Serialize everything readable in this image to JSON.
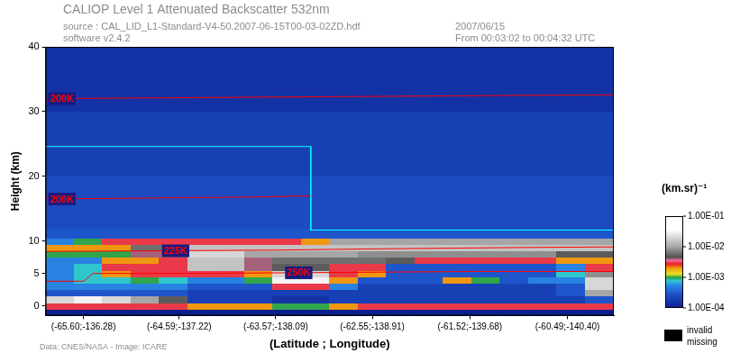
{
  "chart_data": {
    "type": "heatmap",
    "title": "CALIOP Level 1 Attenuated Backscatter 532nm",
    "subtitle": [
      "source : CAL_LID_L1-Standard-V4-50.2007-06-15T00-03-02ZD.hdf",
      "software v2.4.2"
    ],
    "annotations": [
      "2007/06/15",
      "From 00:03:02 to 00:04:32 UTC",
      "Data: CNES/NASA - Image: ICARE"
    ],
    "x_label": "(Latitude ; Longitude)",
    "y_label": "Height (km)",
    "grid": false,
    "xlim": [
      -66.0,
      -60.0
    ],
    "xticks": [
      {
        "value": -65.6,
        "label": "(-65.60;-136.28)"
      },
      {
        "value": -64.59,
        "label": "(-64.59;-137.22)"
      },
      {
        "value": -63.57,
        "label": "(-63.57;-138.09)"
      },
      {
        "value": -62.55,
        "label": "(-62.55;-138.91)"
      },
      {
        "value": -61.52,
        "label": "(-61.52;-139.68)"
      },
      {
        "value": -60.49,
        "label": "(-60.49;-140.40)"
      }
    ],
    "ylim": [
      -1.5,
      40
    ],
    "yticks": [
      0,
      5,
      10,
      20,
      30,
      40
    ],
    "heatmap": {
      "x_edges": [
        -66.0,
        -65.7,
        -65.4,
        -65.1,
        -64.8,
        -64.5,
        -64.2,
        -63.9,
        -63.6,
        -63.3,
        -63.0,
        -62.7,
        -62.4,
        -62.1,
        -61.8,
        -61.5,
        -61.2,
        -60.9,
        -60.6,
        -60.3,
        -60.0
      ],
      "y_edges": [
        -1.5,
        -0.5,
        0.5,
        1.5,
        2.5,
        3.5,
        4.5,
        5.5,
        6.5,
        7.5,
        8.5,
        9.5,
        10.5,
        12,
        15,
        20,
        25,
        30,
        40
      ],
      "values": [
        [
          0.0001,
          0.0001,
          0.0001,
          0.0001,
          0.0001,
          0.0001,
          0.0001,
          0.0001,
          0.0001,
          0.0001,
          0.0001,
          0.0001,
          0.0001,
          0.0001,
          0.0001,
          0.0001,
          0.0001,
          0.0001,
          0.0001,
          0.0001
        ],
        [
          0.003,
          0.003,
          0.003,
          0.003,
          0.003,
          0.002,
          0.002,
          0.002,
          0.001,
          0.001,
          0.002,
          0.003,
          0.003,
          0.003,
          0.003,
          0.003,
          0.003,
          0.003,
          0.003,
          0.003
        ],
        [
          0.02,
          0.03,
          0.02,
          0.01,
          0.005,
          0.0002,
          0.0002,
          0.0002,
          0.00015,
          0.00015,
          0.0002,
          0.0002,
          0.0002,
          0.0002,
          0.0002,
          0.0002,
          0.0002,
          0.0002,
          0.0002,
          0.0003
        ],
        [
          0.0003,
          0.0003,
          0.0003,
          0.0003,
          0.0003,
          0.0002,
          0.0002,
          0.0002,
          0.0002,
          0.0002,
          0.0002,
          0.0002,
          0.0002,
          0.0002,
          0.0002,
          0.0002,
          0.0002,
          0.0002,
          0.0003,
          0.01
        ],
        [
          0.0005,
          0.0005,
          0.0005,
          0.0005,
          0.0005,
          0.0003,
          0.0003,
          0.0003,
          0.003,
          0.003,
          0.0005,
          0.0002,
          0.0002,
          0.0002,
          0.0002,
          0.0002,
          0.0002,
          0.0002,
          0.0003,
          0.02
        ],
        [
          0.0005,
          0.0008,
          0.0008,
          0.001,
          0.0008,
          0.0005,
          0.0005,
          0.001,
          0.03,
          0.03,
          0.002,
          0.0003,
          0.0003,
          0.0003,
          0.002,
          0.001,
          0.0003,
          0.0005,
          0.0005,
          0.02
        ],
        [
          0.0005,
          0.0008,
          0.002,
          0.003,
          0.003,
          0.003,
          0.003,
          0.002,
          0.02,
          0.02,
          0.003,
          0.002,
          0.0003,
          0.0003,
          0.0003,
          0.0003,
          0.0003,
          0.0003,
          0.0008,
          0.008
        ],
        [
          0.0005,
          0.0008,
          0.003,
          0.003,
          0.003,
          0.015,
          0.015,
          0.004,
          0.005,
          0.005,
          0.003,
          0.003,
          0.0003,
          0.0003,
          0.0003,
          0.0003,
          0.0003,
          0.0003,
          0.0005,
          0.003
        ],
        [
          0.0005,
          0.0005,
          0.002,
          0.002,
          0.003,
          0.015,
          0.015,
          0.004,
          0.006,
          0.006,
          0.006,
          0.006,
          0.005,
          0.003,
          0.003,
          0.003,
          0.003,
          0.003,
          0.002,
          0.002
        ],
        [
          0.001,
          0.001,
          0.001,
          0.004,
          0.004,
          0.02,
          0.02,
          0.01,
          0.01,
          0.01,
          0.01,
          0.008,
          0.008,
          0.008,
          0.008,
          0.008,
          0.008,
          0.008,
          0.005,
          0.005
        ],
        [
          0.002,
          0.002,
          0.002,
          0.006,
          0.006,
          0.015,
          0.015,
          0.015,
          0.015,
          0.015,
          0.015,
          0.015,
          0.015,
          0.015,
          0.015,
          0.015,
          0.015,
          0.015,
          0.015,
          0.015
        ],
        [
          0.0005,
          0.001,
          0.003,
          0.003,
          0.003,
          0.003,
          0.003,
          0.003,
          0.003,
          0.002,
          0.01,
          0.01,
          0.01,
          0.01,
          0.01,
          0.01,
          0.01,
          0.01,
          0.01,
          0.01
        ],
        [
          0.0003,
          0.0003,
          0.0003,
          0.0003,
          0.0003,
          0.0003,
          0.0003,
          0.0003,
          0.0003,
          0.0003,
          0.0003,
          0.0003,
          0.0003,
          0.0003,
          0.0003,
          0.0003,
          0.0003,
          0.0003,
          0.0003,
          0.0003
        ],
        [
          0.00025,
          0.00025,
          0.00025,
          0.00025,
          0.00025,
          0.00025,
          0.00025,
          0.00025,
          0.00025,
          0.00025,
          0.00025,
          0.00025,
          0.00025,
          0.00025,
          0.00025,
          0.00025,
          0.00025,
          0.00025,
          0.00025,
          0.00025
        ],
        [
          0.00025,
          0.00025,
          0.00025,
          0.00025,
          0.00025,
          0.00025,
          0.00025,
          0.00025,
          0.00025,
          0.00025,
          0.00025,
          0.00025,
          0.00025,
          0.00025,
          0.00025,
          0.00025,
          0.00025,
          0.00025,
          0.00025,
          0.00025
        ],
        [
          0.0002,
          0.0002,
          0.0002,
          0.0002,
          0.0002,
          0.0002,
          0.0002,
          0.0002,
          0.0002,
          0.0002,
          0.0002,
          0.0002,
          0.0002,
          0.0002,
          0.0002,
          0.0002,
          0.0002,
          0.0002,
          0.0002,
          0.0002
        ],
        [
          0.0002,
          0.0002,
          0.0002,
          0.0002,
          0.0002,
          0.0002,
          0.0002,
          0.0002,
          0.0002,
          0.0002,
          0.0002,
          0.0002,
          0.0002,
          0.0002,
          0.0002,
          0.0002,
          0.0002,
          0.0002,
          0.0002,
          0.0002
        ],
        [
          0.00015,
          0.00015,
          0.00015,
          0.00015,
          0.00015,
          0.00015,
          0.00015,
          0.00015,
          0.00015,
          0.00015,
          0.00015,
          0.00015,
          0.00015,
          0.00015,
          0.00015,
          0.00015,
          0.00015,
          0.00015,
          0.00015,
          0.00015
        ]
      ]
    },
    "colorbar": {
      "label": "(km.sr)⁻¹",
      "log": true,
      "range": [
        0.0001,
        0.1
      ],
      "ticks": [
        {
          "value": 0.1,
          "label": "1.00E-01"
        },
        {
          "value": 0.01,
          "label": "1.00E-02"
        },
        {
          "value": 0.001,
          "label": "1.00E-03"
        },
        {
          "value": 0.0001,
          "label": "1.00E-04"
        }
      ]
    },
    "missing": {
      "labels": [
        "invalid",
        "missing"
      ],
      "color": "#000000"
    },
    "contours": [
      {
        "name": "200K",
        "color": "#ff0000",
        "x": [
          -66.0,
          -63.0,
          -60.0
        ],
        "y": [
          32.0,
          32.3,
          32.6
        ]
      },
      {
        "name": "200K",
        "color": "#ff0000",
        "x": [
          -66.0,
          -63.8,
          -63.2
        ],
        "y": [
          16.5,
          16.8,
          17.0
        ]
      },
      {
        "name": "225K",
        "color": "#ff0000",
        "x": [
          -66.0,
          -64.8,
          -63.6,
          -62.5,
          -61.0,
          -60.0
        ],
        "y": [
          8.4,
          8.5,
          8.6,
          8.8,
          9.0,
          9.1
        ]
      },
      {
        "name": "250K",
        "color": "#ff0000",
        "x": [
          -66.0,
          -65.6,
          -65.5,
          -64.5,
          -63.5,
          -61.5,
          -60.0
        ],
        "y": [
          3.8,
          3.8,
          5.0,
          5.0,
          5.1,
          5.3,
          5.3
        ]
      }
    ],
    "boundary": {
      "color": "#00ffff",
      "x": [
        -66.0,
        -63.2,
        -63.2,
        -60.0
      ],
      "y": [
        24.6,
        24.6,
        11.7,
        11.7
      ]
    }
  }
}
